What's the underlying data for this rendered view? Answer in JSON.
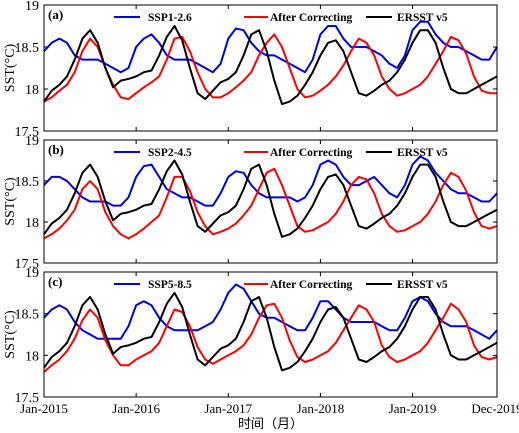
{
  "figure": {
    "xlabel": "时间（月）",
    "x_ticks": [
      {
        "label": "Jan-2015",
        "t": 0
      },
      {
        "label": "Jan-2016",
        "t": 12
      },
      {
        "label": "Jan-2017",
        "t": 24
      },
      {
        "label": "Jan-2018",
        "t": 36
      },
      {
        "label": "Jan-2019",
        "t": 48
      },
      {
        "label": "Dec-2019",
        "t": 59
      }
    ],
    "colors": {
      "ssp": "#0000e6",
      "corrected": "#ff0000",
      "ersst": "#000000"
    }
  },
  "chart_data": [
    {
      "type": "line",
      "panel_label": "(a)",
      "ylabel": "SST(°C)",
      "ylim": [
        17.5,
        19
      ],
      "yticks": [
        "17.5",
        "18",
        "18.5",
        "19"
      ],
      "x": [
        "2015-01",
        "2015-02",
        "2015-03",
        "2015-04",
        "2015-05",
        "2015-06",
        "2015-07",
        "2015-08",
        "2015-09",
        "2015-10",
        "2015-11",
        "2015-12",
        "2016-01",
        "2016-02",
        "2016-03",
        "2016-04",
        "2016-05",
        "2016-06",
        "2016-07",
        "2016-08",
        "2016-09",
        "2016-10",
        "2016-11",
        "2016-12",
        "2017-01",
        "2017-02",
        "2017-03",
        "2017-04",
        "2017-05",
        "2017-06",
        "2017-07",
        "2017-08",
        "2017-09",
        "2017-10",
        "2017-11",
        "2017-12",
        "2018-01",
        "2018-02",
        "2018-03",
        "2018-04",
        "2018-05",
        "2018-06",
        "2018-07",
        "2018-08",
        "2018-09",
        "2018-10",
        "2018-11",
        "2018-12",
        "2019-01",
        "2019-02",
        "2019-03",
        "2019-04",
        "2019-05",
        "2019-06",
        "2019-07",
        "2019-08",
        "2019-09",
        "2019-10",
        "2019-11",
        "2019-12"
      ],
      "series": [
        {
          "name": "SSP1-2.6",
          "color_key": "ssp",
          "values": [
            18.45,
            18.55,
            18.6,
            18.55,
            18.4,
            18.35,
            18.35,
            18.35,
            18.3,
            18.25,
            18.2,
            18.25,
            18.5,
            18.6,
            18.65,
            18.55,
            18.4,
            18.35,
            18.35,
            18.35,
            18.3,
            18.25,
            18.2,
            18.3,
            18.6,
            18.72,
            18.7,
            18.55,
            18.45,
            18.4,
            18.4,
            18.35,
            18.3,
            18.25,
            18.2,
            18.35,
            18.65,
            18.75,
            18.75,
            18.6,
            18.5,
            18.5,
            18.5,
            18.45,
            18.4,
            18.3,
            18.25,
            18.4,
            18.7,
            18.8,
            18.8,
            18.65,
            18.55,
            18.5,
            18.5,
            18.45,
            18.4,
            18.35,
            18.35,
            18.5
          ]
        },
        {
          "name": "After Correcting",
          "color_key": "corrected",
          "values": [
            17.85,
            17.9,
            17.98,
            18.05,
            18.2,
            18.45,
            18.6,
            18.5,
            18.25,
            18.05,
            17.9,
            17.88,
            17.95,
            18.02,
            18.08,
            18.15,
            18.35,
            18.6,
            18.62,
            18.45,
            18.2,
            18.0,
            17.9,
            17.9,
            17.95,
            18.02,
            18.1,
            18.2,
            18.4,
            18.55,
            18.65,
            18.5,
            18.25,
            18.0,
            17.9,
            17.92,
            17.98,
            18.05,
            18.15,
            18.28,
            18.45,
            18.6,
            18.55,
            18.4,
            18.15,
            18.0,
            17.92,
            17.95,
            18.0,
            18.05,
            18.15,
            18.3,
            18.45,
            18.62,
            18.58,
            18.42,
            18.15,
            17.98,
            17.95,
            17.95
          ]
        },
        {
          "name": "ERSST v5",
          "color_key": "ersst",
          "values": [
            17.85,
            17.98,
            18.05,
            18.15,
            18.35,
            18.6,
            18.7,
            18.55,
            18.25,
            18.02,
            18.1,
            18.12,
            18.15,
            18.2,
            18.22,
            18.4,
            18.62,
            18.75,
            18.58,
            18.25,
            17.95,
            17.88,
            17.98,
            18.08,
            18.12,
            18.2,
            18.4,
            18.65,
            18.7,
            18.45,
            18.1,
            17.82,
            17.85,
            17.92,
            18.05,
            18.2,
            18.4,
            18.55,
            18.58,
            18.45,
            18.2,
            17.95,
            17.92,
            17.98,
            18.05,
            18.1,
            18.2,
            18.35,
            18.55,
            18.7,
            18.7,
            18.55,
            18.25,
            18.0,
            17.95,
            17.95,
            18.0,
            18.05,
            18.1,
            18.15
          ]
        }
      ]
    },
    {
      "type": "line",
      "panel_label": "(b)",
      "ylabel": "SST(°C)",
      "ylim": [
        17.5,
        19
      ],
      "yticks": [
        "17.5",
        "18",
        "18.5",
        "19"
      ],
      "x": [
        "2015-01",
        "2015-02",
        "2015-03",
        "2015-04",
        "2015-05",
        "2015-06",
        "2015-07",
        "2015-08",
        "2015-09",
        "2015-10",
        "2015-11",
        "2015-12",
        "2016-01",
        "2016-02",
        "2016-03",
        "2016-04",
        "2016-05",
        "2016-06",
        "2016-07",
        "2016-08",
        "2016-09",
        "2016-10",
        "2016-11",
        "2016-12",
        "2017-01",
        "2017-02",
        "2017-03",
        "2017-04",
        "2017-05",
        "2017-06",
        "2017-07",
        "2017-08",
        "2017-09",
        "2017-10",
        "2017-11",
        "2017-12",
        "2018-01",
        "2018-02",
        "2018-03",
        "2018-04",
        "2018-05",
        "2018-06",
        "2018-07",
        "2018-08",
        "2018-09",
        "2018-10",
        "2018-11",
        "2018-12",
        "2019-01",
        "2019-02",
        "2019-03",
        "2019-04",
        "2019-05",
        "2019-06",
        "2019-07",
        "2019-08",
        "2019-09",
        "2019-10",
        "2019-11",
        "2019-12"
      ],
      "series": [
        {
          "name": "SSP2-4.5",
          "color_key": "ssp",
          "values": [
            18.45,
            18.55,
            18.55,
            18.5,
            18.4,
            18.3,
            18.25,
            18.25,
            18.25,
            18.2,
            18.2,
            18.3,
            18.55,
            18.68,
            18.7,
            18.55,
            18.4,
            18.35,
            18.3,
            18.3,
            18.25,
            18.2,
            18.2,
            18.35,
            18.55,
            18.62,
            18.6,
            18.45,
            18.35,
            18.3,
            18.3,
            18.3,
            18.3,
            18.25,
            18.3,
            18.45,
            18.7,
            18.75,
            18.7,
            18.55,
            18.45,
            18.45,
            18.5,
            18.55,
            18.45,
            18.35,
            18.3,
            18.45,
            18.7,
            18.8,
            18.75,
            18.6,
            18.5,
            18.4,
            18.35,
            18.35,
            18.3,
            18.25,
            18.25,
            18.35
          ]
        },
        {
          "name": "After Correcting",
          "color_key": "corrected",
          "values": [
            17.8,
            17.85,
            17.92,
            18.02,
            18.15,
            18.4,
            18.5,
            18.4,
            18.12,
            17.95,
            17.85,
            17.8,
            17.85,
            17.92,
            18.0,
            18.08,
            18.3,
            18.55,
            18.55,
            18.38,
            18.12,
            17.95,
            17.85,
            17.88,
            17.92,
            17.98,
            18.08,
            18.2,
            18.4,
            18.6,
            18.65,
            18.45,
            18.2,
            17.95,
            17.88,
            17.9,
            17.95,
            18.0,
            18.1,
            18.25,
            18.45,
            18.55,
            18.52,
            18.35,
            18.1,
            17.95,
            17.88,
            17.9,
            17.95,
            18.0,
            18.1,
            18.25,
            18.45,
            18.6,
            18.55,
            18.38,
            18.12,
            17.95,
            17.92,
            17.95
          ]
        },
        {
          "name": "ERSST v5",
          "color_key": "ersst",
          "values": [
            17.85,
            17.98,
            18.05,
            18.15,
            18.35,
            18.6,
            18.7,
            18.55,
            18.25,
            18.02,
            18.1,
            18.12,
            18.15,
            18.2,
            18.22,
            18.4,
            18.62,
            18.75,
            18.58,
            18.25,
            17.95,
            17.88,
            17.98,
            18.08,
            18.12,
            18.2,
            18.4,
            18.65,
            18.7,
            18.45,
            18.1,
            17.82,
            17.85,
            17.92,
            18.05,
            18.2,
            18.4,
            18.55,
            18.58,
            18.45,
            18.2,
            17.95,
            17.92,
            17.98,
            18.05,
            18.1,
            18.2,
            18.35,
            18.55,
            18.7,
            18.7,
            18.55,
            18.25,
            18.0,
            17.95,
            17.95,
            18.0,
            18.05,
            18.1,
            18.15
          ]
        }
      ]
    },
    {
      "type": "line",
      "panel_label": "(c)",
      "ylabel": "SST(°C)",
      "ylim": [
        17.5,
        19
      ],
      "yticks": [
        "17.5",
        "18",
        "18.5",
        "19"
      ],
      "x": [
        "2015-01",
        "2015-02",
        "2015-03",
        "2015-04",
        "2015-05",
        "2015-06",
        "2015-07",
        "2015-08",
        "2015-09",
        "2015-10",
        "2015-11",
        "2015-12",
        "2016-01",
        "2016-02",
        "2016-03",
        "2016-04",
        "2016-05",
        "2016-06",
        "2016-07",
        "2016-08",
        "2016-09",
        "2016-10",
        "2016-11",
        "2016-12",
        "2017-01",
        "2017-02",
        "2017-03",
        "2017-04",
        "2017-05",
        "2017-06",
        "2017-07",
        "2017-08",
        "2017-09",
        "2017-10",
        "2017-11",
        "2017-12",
        "2018-01",
        "2018-02",
        "2018-03",
        "2018-04",
        "2018-05",
        "2018-06",
        "2018-07",
        "2018-08",
        "2018-09",
        "2018-10",
        "2018-11",
        "2018-12",
        "2019-01",
        "2019-02",
        "2019-03",
        "2019-04",
        "2019-05",
        "2019-06",
        "2019-07",
        "2019-08",
        "2019-09",
        "2019-10",
        "2019-11",
        "2019-12"
      ],
      "series": [
        {
          "name": "SSP5-8.5",
          "color_key": "ssp",
          "values": [
            18.45,
            18.55,
            18.6,
            18.55,
            18.4,
            18.3,
            18.25,
            18.2,
            18.2,
            18.2,
            18.2,
            18.35,
            18.6,
            18.65,
            18.6,
            18.45,
            18.35,
            18.3,
            18.3,
            18.3,
            18.3,
            18.35,
            18.4,
            18.55,
            18.75,
            18.85,
            18.8,
            18.65,
            18.5,
            18.45,
            18.45,
            18.4,
            18.35,
            18.3,
            18.3,
            18.45,
            18.65,
            18.65,
            18.55,
            18.45,
            18.4,
            18.4,
            18.4,
            18.4,
            18.35,
            18.3,
            18.3,
            18.45,
            18.65,
            18.7,
            18.65,
            18.5,
            18.4,
            18.35,
            18.35,
            18.35,
            18.3,
            18.25,
            18.2,
            18.3
          ]
        },
        {
          "name": "After Correcting",
          "color_key": "corrected",
          "values": [
            17.8,
            17.88,
            17.95,
            18.05,
            18.2,
            18.42,
            18.55,
            18.45,
            18.18,
            18.0,
            17.88,
            17.88,
            17.95,
            18.0,
            18.05,
            18.15,
            18.35,
            18.55,
            18.52,
            18.35,
            18.1,
            17.95,
            17.9,
            17.95,
            18.0,
            18.05,
            18.12,
            18.25,
            18.45,
            18.6,
            18.62,
            18.45,
            18.18,
            17.98,
            17.92,
            17.95,
            18.0,
            18.05,
            18.15,
            18.3,
            18.45,
            18.6,
            18.55,
            18.4,
            18.12,
            17.98,
            17.92,
            17.95,
            18.0,
            18.05,
            18.15,
            18.3,
            18.45,
            18.62,
            18.55,
            18.4,
            18.12,
            17.98,
            17.95,
            17.98
          ]
        },
        {
          "name": "ERSST v5",
          "color_key": "ersst",
          "values": [
            17.85,
            17.98,
            18.05,
            18.15,
            18.35,
            18.6,
            18.7,
            18.55,
            18.25,
            18.02,
            18.1,
            18.12,
            18.15,
            18.2,
            18.22,
            18.4,
            18.62,
            18.75,
            18.58,
            18.25,
            17.95,
            17.88,
            17.98,
            18.08,
            18.12,
            18.2,
            18.4,
            18.65,
            18.7,
            18.45,
            18.1,
            17.82,
            17.85,
            17.92,
            18.05,
            18.2,
            18.4,
            18.55,
            18.58,
            18.45,
            18.2,
            17.95,
            17.92,
            17.98,
            18.05,
            18.1,
            18.2,
            18.35,
            18.55,
            18.7,
            18.7,
            18.55,
            18.25,
            18.0,
            17.95,
            17.95,
            18.0,
            18.05,
            18.1,
            18.15
          ]
        }
      ]
    }
  ]
}
